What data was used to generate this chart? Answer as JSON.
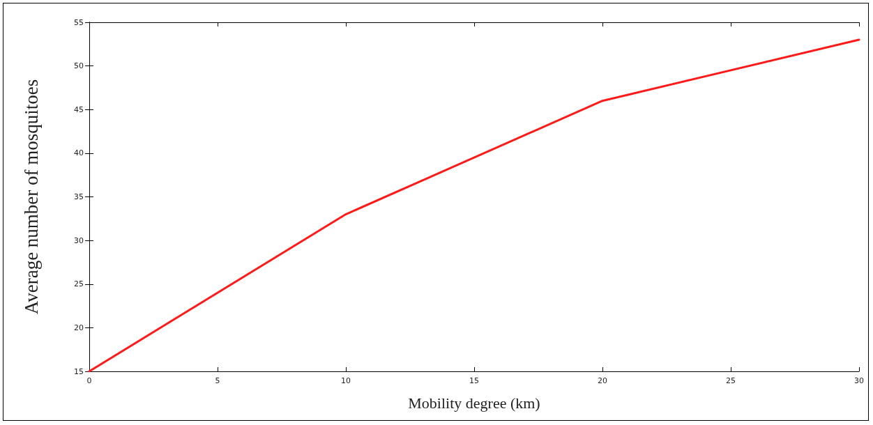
{
  "chart_data": {
    "type": "line",
    "xlabel": "Mobility degree (km)",
    "ylabel": "Average number of mosquitoes",
    "x": [
      0,
      10,
      20,
      30
    ],
    "series": [
      {
        "color": "#ff1a1a",
        "values": [
          15,
          33,
          46,
          53
        ]
      }
    ],
    "xlim": [
      0,
      30
    ],
    "xticks": [
      0,
      5,
      10,
      15,
      20,
      25,
      30
    ],
    "ylim": [
      15,
      55
    ],
    "yticks": [
      15,
      20,
      25,
      30,
      35,
      40,
      45,
      50,
      55
    ],
    "grid": false,
    "marker": "none",
    "line_style": "solid"
  }
}
